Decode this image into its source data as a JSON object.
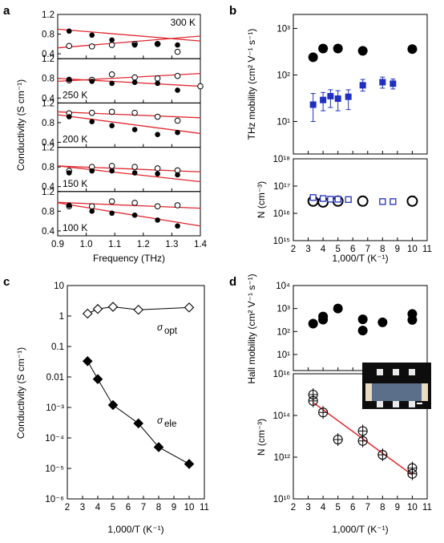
{
  "chart_data": [
    {
      "panel": "a",
      "type": "scatter",
      "xlabel": "Frequency (THz)",
      "ylabel": "Conductivity (S cm⁻¹)",
      "xlim": [
        0.9,
        1.4
      ],
      "ylim": [
        0.3,
        1.2
      ],
      "xticks": [
        "0.9",
        "1.0",
        "1.1",
        "1.2",
        "1.3",
        "1.4"
      ],
      "yticks": [
        "0.4",
        "0.8",
        "1.2"
      ],
      "fit_color": "#e0282f",
      "subpanels": [
        {
          "label": "300 K",
          "filled": [
            [
              0.94,
              0.86
            ],
            [
              1.02,
              0.78
            ],
            [
              1.09,
              0.68
            ],
            [
              1.17,
              0.58
            ],
            [
              1.25,
              0.6
            ],
            [
              1.32,
              0.58
            ]
          ],
          "open": [
            [
              0.94,
              0.56
            ],
            [
              1.02,
              0.55
            ],
            [
              1.09,
              0.58
            ],
            [
              1.17,
              0.6
            ],
            [
              1.25,
              0.6
            ],
            [
              1.32,
              0.44
            ]
          ],
          "fits": [
            [
              [
                0.9,
                0.9
              ],
              [
                1.4,
                0.66
              ]
            ],
            [
              [
                0.9,
                0.52
              ],
              [
                1.4,
                0.76
              ]
            ]
          ]
        },
        {
          "label": "250 K",
          "filled": [
            [
              0.94,
              0.78
            ],
            [
              1.02,
              0.74
            ],
            [
              1.09,
              0.7
            ],
            [
              1.17,
              0.72
            ],
            [
              1.25,
              0.7
            ],
            [
              1.32,
              0.56
            ]
          ],
          "open": [
            [
              0.94,
              0.76
            ],
            [
              1.02,
              0.77
            ],
            [
              1.09,
              0.88
            ],
            [
              1.17,
              0.82
            ],
            [
              1.25,
              0.8
            ],
            [
              1.32,
              0.85
            ],
            [
              1.4,
              0.64
            ]
          ],
          "fits": [
            [
              [
                0.9,
                0.8
              ],
              [
                1.4,
                0.64
              ]
            ],
            [
              [
                0.9,
                0.74
              ],
              [
                1.4,
                0.9
              ]
            ]
          ]
        },
        {
          "label": "200 K",
          "filled": [
            [
              0.94,
              0.92
            ],
            [
              1.02,
              0.82
            ],
            [
              1.09,
              0.74
            ],
            [
              1.17,
              0.66
            ],
            [
              1.25,
              0.56
            ],
            [
              1.32,
              0.6
            ]
          ],
          "open": [
            [
              0.94,
              0.99
            ],
            [
              1.02,
              1.0
            ],
            [
              1.09,
              1.02
            ],
            [
              1.17,
              1.0
            ],
            [
              1.25,
              0.92
            ],
            [
              1.32,
              0.84
            ]
          ],
          "fits": [
            [
              [
                0.9,
                0.96
              ],
              [
                1.4,
                0.58
              ]
            ],
            [
              [
                0.9,
                1.02
              ],
              [
                1.4,
                0.9
              ]
            ]
          ]
        },
        {
          "label": "150 K",
          "filled": [
            [
              0.94,
              0.68
            ],
            [
              1.02,
              0.72
            ],
            [
              1.09,
              0.72
            ],
            [
              1.17,
              0.68
            ],
            [
              1.25,
              0.66
            ],
            [
              1.32,
              0.64
            ]
          ],
          "open": [
            [
              0.94,
              0.72
            ],
            [
              1.02,
              0.8
            ],
            [
              1.09,
              0.82
            ],
            [
              1.17,
              0.8
            ],
            [
              1.25,
              0.77
            ],
            [
              1.32,
              0.73
            ]
          ],
          "fits": [
            [
              [
                0.9,
                0.82
              ],
              [
                1.4,
                0.5
              ]
            ],
            [
              [
                0.9,
                0.82
              ],
              [
                1.4,
                0.7
              ]
            ]
          ]
        },
        {
          "label": "100 K",
          "filled": [
            [
              0.94,
              0.92
            ],
            [
              1.02,
              0.8
            ],
            [
              1.09,
              0.76
            ],
            [
              1.17,
              0.72
            ],
            [
              1.25,
              0.62
            ],
            [
              1.32,
              0.5
            ]
          ],
          "open": [
            [
              0.94,
              0.9
            ],
            [
              1.02,
              0.9
            ],
            [
              1.09,
              1.0
            ],
            [
              1.17,
              0.97
            ],
            [
              1.25,
              0.9
            ],
            [
              1.32,
              0.92
            ]
          ],
          "fits": [
            [
              [
                0.9,
                0.97
              ],
              [
                1.4,
                0.5
              ]
            ],
            [
              [
                0.9,
                0.98
              ],
              [
                1.4,
                0.86
              ]
            ]
          ]
        }
      ]
    },
    {
      "panel": "b",
      "type": "scatter",
      "xlabel": "1,000/T (K⁻¹)",
      "xlim": [
        2,
        11
      ],
      "xticks": [
        "2",
        "3",
        "4",
        "5",
        "6",
        "7",
        "8",
        "9",
        "10",
        "11"
      ],
      "top": {
        "ylabel": "THz mobility (cm² V⁻¹ s⁻¹)",
        "yscale": "log",
        "ylim": [
          2,
          2000
        ],
        "yticks": [
          "10¹",
          "10²",
          "10³"
        ],
        "series": [
          {
            "marker": "black-circle",
            "x": [
              3.33,
              4,
              5,
              6.67,
              10
            ],
            "y": [
              240,
              370,
              370,
              330,
              360
            ]
          },
          {
            "marker": "blue-square",
            "x": [
              3.33,
              4,
              4.5,
              5,
              5.7,
              6.67,
              8,
              8.7
            ],
            "y": [
              23,
              29,
              35,
              31,
              34,
              60,
              70,
              65
            ],
            "err_lo": [
              10,
              17,
              20,
              17,
              18,
              45,
              52,
              50
            ],
            "err_hi": [
              40,
              42,
              48,
              46,
              48,
              80,
              90,
              82
            ]
          }
        ]
      },
      "bottom": {
        "ylabel": "N (cm⁻³)",
        "yscale": "log",
        "ylim": [
          1000000000000000.0,
          1e+18
        ],
        "yticks": [
          "10¹⁵",
          "10¹⁶",
          "10¹⁷",
          "10¹⁸"
        ],
        "series": [
          {
            "marker": "open-circle",
            "x": [
              3.33,
              4,
              5,
              6.67,
              10
            ],
            "y": [
              2.8e+16,
              2.6e+16,
              2.8e+16,
              2.8e+16,
              2.8e+16
            ]
          },
          {
            "marker": "open-blue-square",
            "x": [
              3.33,
              4,
              4.5,
              5,
              5.7,
              8,
              8.7
            ],
            "y": [
              3.8e+16,
              3.5e+16,
              3.3e+16,
              3.3e+16,
              3.2e+16,
              2.7e+16,
              2.7e+16
            ]
          }
        ]
      },
      "colors": {
        "blue": "#1f2fbf",
        "black": "#000000"
      }
    },
    {
      "panel": "c",
      "type": "line",
      "xlabel": "1,000/T (K⁻¹)",
      "ylabel": "Conductivity (S cm⁻¹)",
      "xlim": [
        2,
        11
      ],
      "yscale": "log",
      "ylim": [
        1e-06,
        10
      ],
      "xticks": [
        "2",
        "3",
        "4",
        "5",
        "6",
        "7",
        "8",
        "9",
        "10",
        "11"
      ],
      "yticks": [
        "10⁻⁶",
        "10⁻⁵",
        "10⁻⁴",
        "10⁻³",
        "0.01",
        "0.1",
        "1",
        "10"
      ],
      "series": [
        {
          "name": "σopt",
          "marker": "open-diamond",
          "x": [
            3.33,
            4,
            5,
            6.67,
            10
          ],
          "y": [
            1.2,
            1.7,
            2.0,
            1.6,
            1.9
          ]
        },
        {
          "name": "σele",
          "marker": "filled-diamond",
          "x": [
            3.33,
            4,
            5,
            6.67,
            8,
            10
          ],
          "y": [
            0.033,
            0.0085,
            0.0012,
            0.0003,
            5e-05,
            1.4e-05
          ]
        }
      ],
      "annotations": {
        "opt_main": "σ",
        "opt_sub": "opt",
        "ele_main": "σ",
        "ele_sub": "ele"
      }
    },
    {
      "panel": "d",
      "type": "scatter",
      "xlabel": "1,000/T (K⁻¹)",
      "xlim": [
        2,
        11
      ],
      "xticks": [
        "2",
        "3",
        "4",
        "5",
        "6",
        "7",
        "8",
        "9",
        "10",
        "11"
      ],
      "top": {
        "ylabel": "Hall mobility (cm² V⁻¹ s⁻¹)",
        "yscale": "log",
        "ylim": [
          2,
          10000
        ],
        "yticks": [
          "10¹",
          "10²",
          "10³",
          "10⁴"
        ],
        "series": [
          {
            "marker": "black-circle",
            "x": [
              3.33,
              4,
              4,
              5,
              6.67,
              6.67,
              8,
              10,
              10
            ],
            "y": [
              220,
              330,
              450,
              1000,
              340,
              110,
              250,
              320,
              580
            ]
          }
        ]
      },
      "bottom": {
        "ylabel": "N (cm⁻³)",
        "yscale": "log",
        "ylim": [
          10000000000.0,
          1e+16
        ],
        "yticks": [
          "10¹⁰",
          "10¹²",
          "10¹⁴",
          "10¹⁶"
        ],
        "series": [
          {
            "marker": "open-circle-errbar",
            "x": [
              3.33,
              3.33,
              4,
              5,
              6.67,
              6.67,
              8,
              10,
              10
            ],
            "y": [
              1000000000000000.0,
              500000000000000.0,
              140000000000000.0,
              7000000000000.0,
              18000000000000.0,
              6000000000000.0,
              1300000000000.0,
              300000000000.0,
              160000000000.0
            ]
          }
        ],
        "fit": {
          "x": [
            3.33,
            10
          ],
          "y": [
            420000000000000.0,
            140000000000.0
          ],
          "color": "#e0282f"
        }
      },
      "inset": "device-photo"
    }
  ]
}
